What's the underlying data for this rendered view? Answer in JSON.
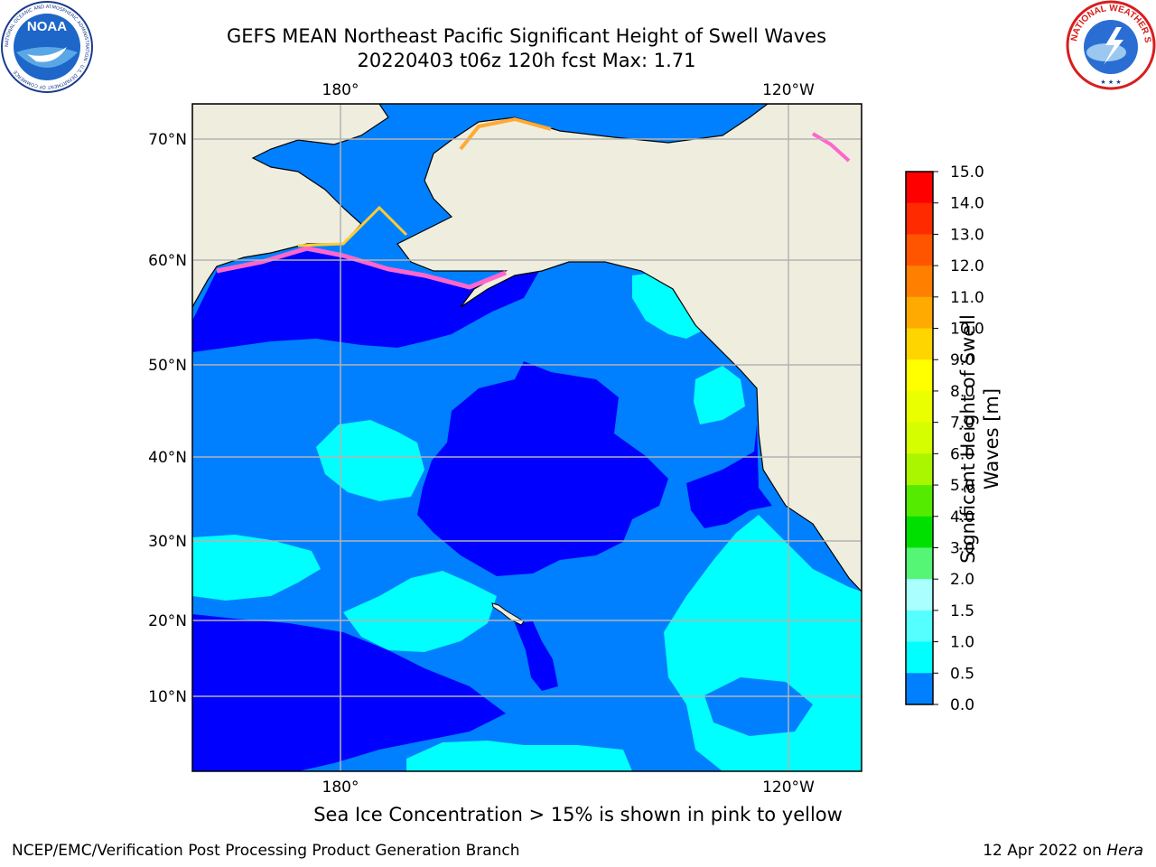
{
  "header": {
    "title_line1": "GEFS MEAN Northeast Pacific Significant Height of Swell Waves",
    "title_line2": "20220403 t06z 120h fcst   Max: 1.71"
  },
  "logos": {
    "left": "NOAA",
    "left_ring": "NATIONAL OCEANIC AND ATMOSPHERIC ADMINISTRATION · U.S. DEPARTMENT OF COMMERCE",
    "right": "NATIONAL WEATHER SERVICE"
  },
  "map": {
    "lon_labels_top": [
      "180°",
      "120°W"
    ],
    "lon_labels_bottom": [
      "180°",
      "120°W"
    ],
    "lat_labels": [
      "70°N",
      "60°N",
      "50°N",
      "40°N",
      "30°N",
      "20°N",
      "10°N"
    ],
    "colors": {
      "land": "#efedde",
      "ocean_blue": "#0080ff",
      "dark_blue": "#0000ff",
      "cyan": "#00ffff",
      "grid": "#b3b3b3"
    }
  },
  "colorbar": {
    "title": "Significant Height of Swell Waves [m]",
    "ticks": [
      "15.0",
      "14.0",
      "13.0",
      "12.0",
      "11.0",
      "10.0",
      "9.0",
      "8.0",
      "7.0",
      "6.0",
      "5.0",
      "4.0",
      "3.0",
      "2.0",
      "1.5",
      "1.0",
      "0.5",
      "0.0"
    ],
    "colors_top_to_bottom": [
      "#ff0000",
      "#ff2a00",
      "#ff5500",
      "#ff8000",
      "#ffaa00",
      "#ffd500",
      "#ffff00",
      "#eaff00",
      "#d5ff00",
      "#aaf500",
      "#55eb00",
      "#00e000",
      "#55f575",
      "#aaffff",
      "#55ffff",
      "#00ffff",
      "#0080ff",
      "#0000ff"
    ]
  },
  "caption": "Sea Ice Concentration > 15% is shown in pink to yellow",
  "footer": {
    "left": "NCEP/EMC/Verification Post Processing Product Generation Branch",
    "right_prefix": "12 Apr 2022 on ",
    "right_italic": "Hera"
  }
}
